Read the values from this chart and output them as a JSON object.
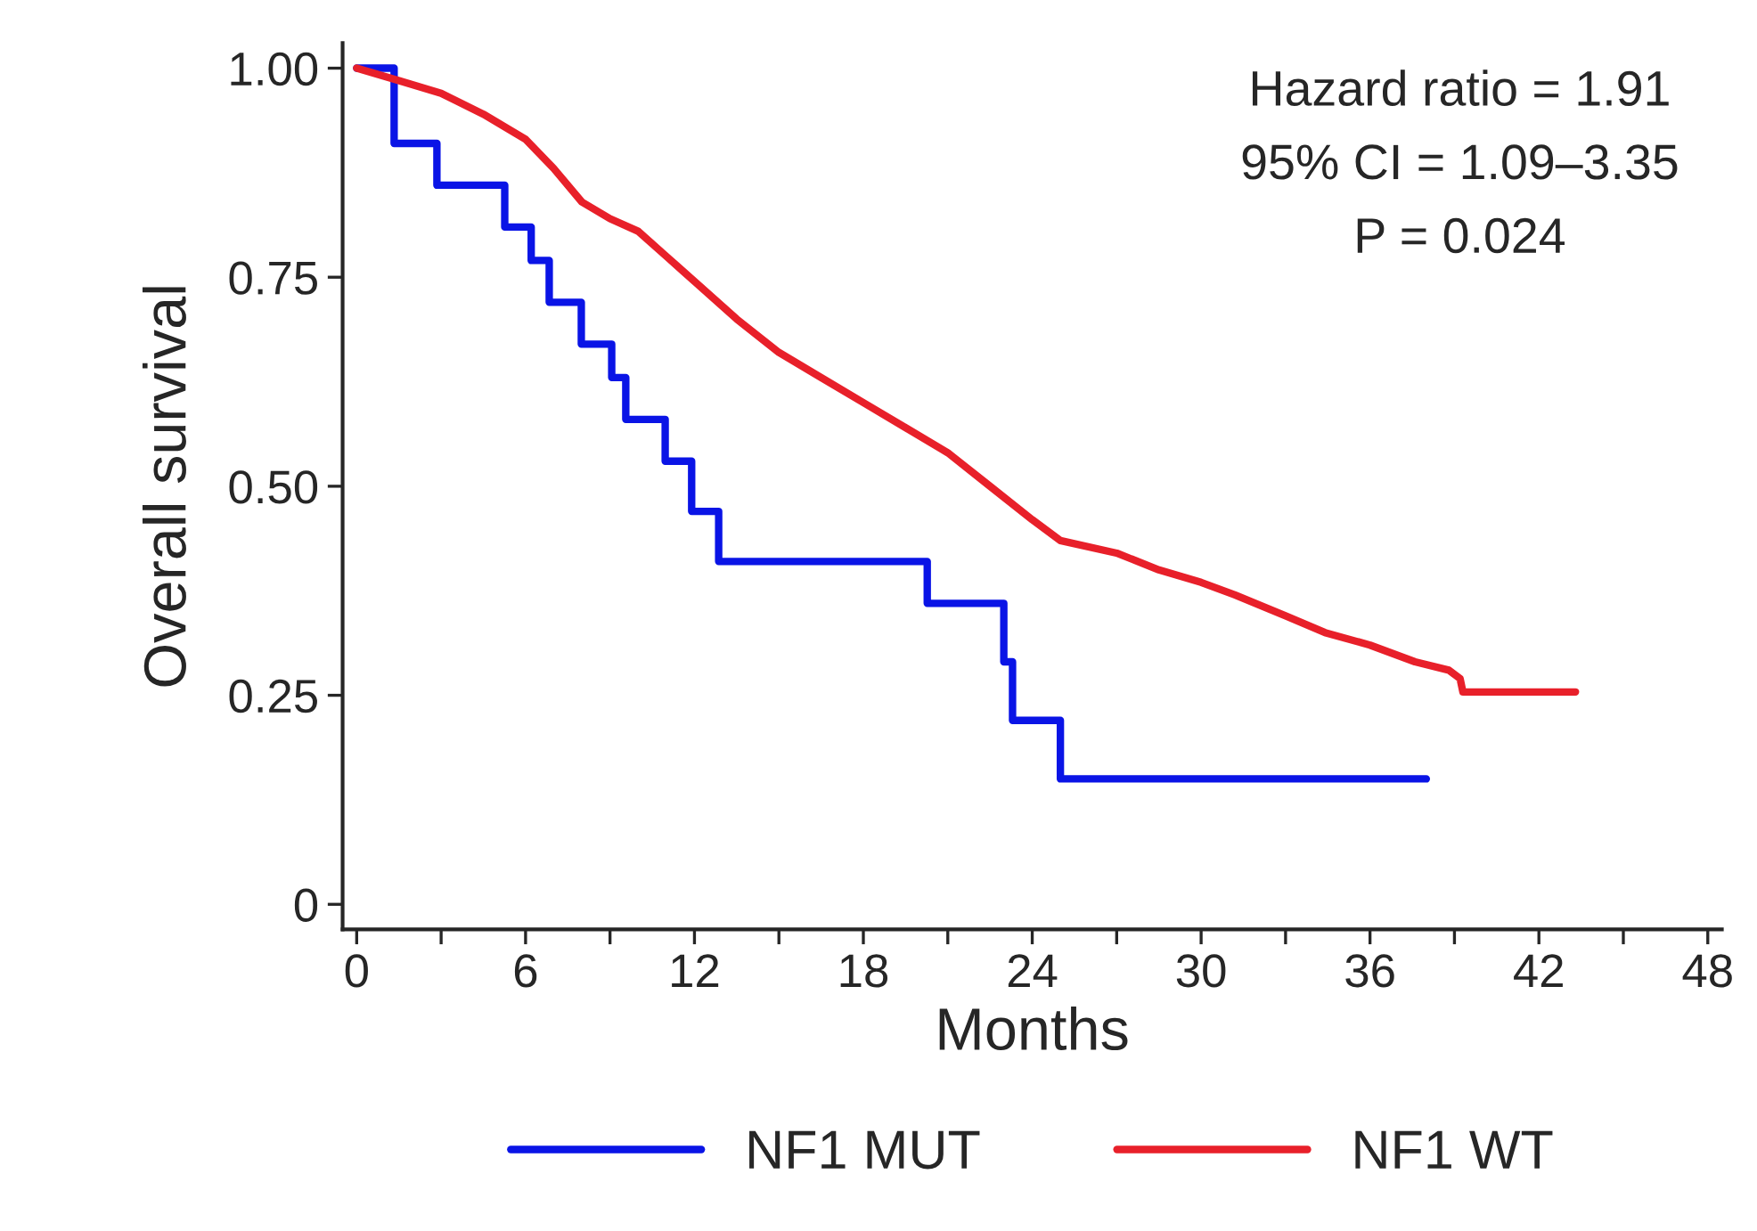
{
  "chart_data": {
    "type": "step",
    "xlabel": "Months",
    "ylabel": "Overall survival",
    "xlim": [
      -0.5,
      48.5
    ],
    "ylim": [
      -0.03,
      1.03
    ],
    "xticks": [
      0,
      {
        "value": 3,
        "label": null
      },
      6,
      {
        "value": 9,
        "label": null
      },
      12,
      {
        "value": 15,
        "label": null
      },
      18,
      {
        "value": 21,
        "label": null
      },
      24,
      {
        "value": 27,
        "label": null
      },
      30,
      {
        "value": 33,
        "label": null
      },
      36,
      {
        "value": 39,
        "label": null
      },
      42,
      {
        "value": 45,
        "label": null
      },
      48
    ],
    "yticks": [
      0,
      {
        "value": 0.25,
        "label": "0.25"
      },
      {
        "value": 0.5,
        "label": "0.50"
      },
      {
        "value": 0.75,
        "label": "0.75"
      },
      {
        "value": 1,
        "label": "1.00"
      }
    ],
    "grid": false,
    "legend": "bottom",
    "line_style": "solid",
    "annotations": [
      "Hazard ratio = 1.91",
      "95% CI = 1.09–3.35",
      "P = 0.024"
    ],
    "series": [
      {
        "name": "NF1 MUT",
        "color": "#0a14e6",
        "x": [
          0,
          1.33,
          2.85,
          5.26,
          6.2,
          6.84,
          7.98,
          9.06,
          9.56,
          10.96,
          11.9,
          12.86,
          20.27,
          22.99,
          23.3,
          25.0,
          38.0
        ],
        "values": [
          1.0,
          0.91,
          0.86,
          0.81,
          0.77,
          0.72,
          0.67,
          0.63,
          0.58,
          0.53,
          0.47,
          0.41,
          0.36,
          0.29,
          0.22,
          0.15,
          0.15
        ]
      },
      {
        "name": "NF1 WT",
        "color": "#e8202a",
        "type": "line",
        "x": [
          0,
          1.5,
          3,
          4.5,
          6,
          7,
          8,
          9,
          10,
          11,
          12,
          13.5,
          15,
          16.5,
          18,
          19.5,
          21,
          22.5,
          24,
          25,
          27,
          28.5,
          30,
          31.2,
          33,
          34.4,
          36,
          37.6,
          38.8,
          39.2,
          39.3,
          41,
          43.3
        ],
        "values": [
          1.0,
          0.985,
          0.97,
          0.945,
          0.915,
          0.88,
          0.84,
          0.82,
          0.805,
          0.775,
          0.745,
          0.7,
          0.66,
          0.63,
          0.6,
          0.57,
          0.54,
          0.5,
          0.46,
          0.435,
          0.42,
          0.4,
          0.385,
          0.37,
          0.345,
          0.325,
          0.31,
          0.29,
          0.28,
          0.27,
          0.254,
          0.254,
          0.254
        ]
      }
    ]
  }
}
